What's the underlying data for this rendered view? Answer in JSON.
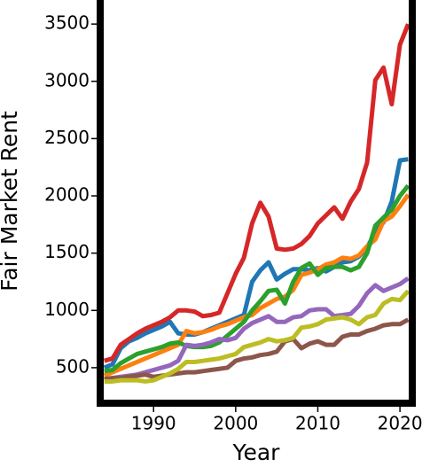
{
  "chart_data": {
    "type": "line",
    "xlabel": "Year",
    "ylabel": "Fair Market Rent",
    "x": [
      1984,
      1985,
      1986,
      1987,
      1988,
      1989,
      1990,
      1991,
      1992,
      1993,
      1994,
      1995,
      1996,
      1997,
      1998,
      1999,
      2000,
      2001,
      2002,
      2003,
      2004,
      2005,
      2006,
      2007,
      2008,
      2009,
      2010,
      2011,
      2012,
      2013,
      2014,
      2015,
      2016,
      2017,
      2018,
      2019,
      2020,
      2021
    ],
    "series": [
      {
        "color": "#1f77b4",
        "values": [
          500,
          530,
          670,
          730,
          760,
          800,
          830,
          860,
          900,
          800,
          790,
          790,
          810,
          840,
          870,
          900,
          930,
          960,
          1250,
          1350,
          1420,
          1270,
          1320,
          1360,
          1360,
          1350,
          1370,
          1340,
          1380,
          1420,
          1430,
          1470,
          1550,
          1680,
          1770,
          1950,
          2310,
          2320
        ]
      },
      {
        "color": "#ff7f0e",
        "values": [
          430,
          460,
          490,
          520,
          550,
          580,
          610,
          640,
          670,
          700,
          820,
          800,
          810,
          830,
          860,
          880,
          910,
          940,
          960,
          1020,
          1060,
          1100,
          1120,
          1180,
          1310,
          1330,
          1360,
          1400,
          1420,
          1460,
          1450,
          1480,
          1560,
          1620,
          1780,
          1820,
          1910,
          2010
        ]
      },
      {
        "color": "#2ca02c",
        "values": [
          470,
          480,
          540,
          580,
          620,
          640,
          660,
          680,
          710,
          720,
          690,
          680,
          680,
          690,
          720,
          780,
          840,
          900,
          1000,
          1080,
          1170,
          1180,
          1060,
          1250,
          1370,
          1410,
          1310,
          1370,
          1380,
          1380,
          1350,
          1380,
          1500,
          1740,
          1810,
          1880,
          2000,
          2090
        ]
      },
      {
        "color": "#d62728",
        "values": [
          560,
          580,
          700,
          750,
          800,
          840,
          870,
          900,
          940,
          1000,
          1000,
          990,
          950,
          960,
          980,
          1150,
          1320,
          1460,
          1760,
          1940,
          1820,
          1540,
          1530,
          1540,
          1580,
          1650,
          1760,
          1830,
          1900,
          1800,
          1950,
          2060,
          2290,
          3010,
          3120,
          2800,
          3320,
          3500
        ]
      },
      {
        "color": "#9467bd",
        "values": [
          400,
          410,
          420,
          430,
          440,
          460,
          480,
          500,
          520,
          560,
          700,
          690,
          700,
          720,
          750,
          740,
          760,
          840,
          890,
          920,
          950,
          900,
          900,
          940,
          950,
          1000,
          1010,
          1010,
          950,
          960,
          970,
          1040,
          1150,
          1220,
          1170,
          1200,
          1230,
          1280
        ]
      },
      {
        "color": "#8c564b",
        "values": [
          400,
          410,
          410,
          420,
          430,
          440,
          420,
          430,
          440,
          450,
          460,
          460,
          470,
          480,
          490,
          500,
          560,
          580,
          590,
          610,
          620,
          640,
          730,
          750,
          670,
          710,
          730,
          700,
          700,
          770,
          790,
          790,
          820,
          840,
          870,
          880,
          880,
          920
        ]
      },
      {
        "color": "#bcbd22",
        "values": [
          380,
          380,
          390,
          390,
          390,
          380,
          390,
          420,
          450,
          490,
          550,
          550,
          560,
          570,
          580,
          600,
          620,
          680,
          700,
          720,
          750,
          730,
          740,
          760,
          850,
          860,
          880,
          920,
          930,
          940,
          920,
          880,
          940,
          960,
          1060,
          1100,
          1090,
          1170
        ]
      }
    ],
    "xlim": [
      1983.5,
      2021.5
    ],
    "xticks": [
      1990,
      2000,
      2010,
      2020
    ],
    "ylim": [
      190,
      3710
    ],
    "yticks": [
      500,
      1000,
      1500,
      2000,
      2500,
      3000,
      3500
    ]
  }
}
